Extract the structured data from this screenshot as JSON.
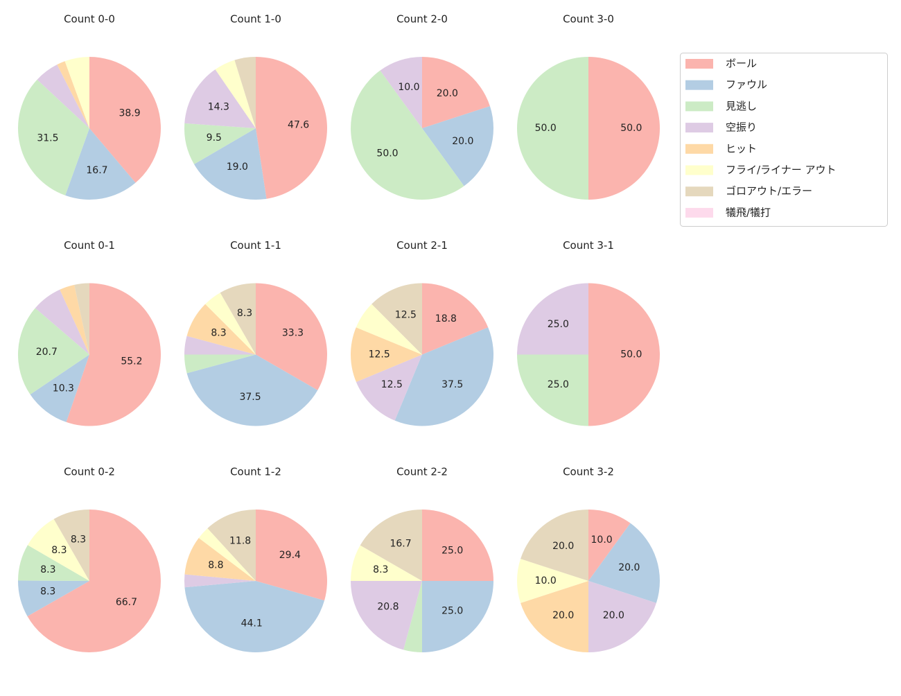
{
  "legend": {
    "labels": [
      "ボール",
      "ファウル",
      "見逃し",
      "空振り",
      "ヒット",
      "フライ/ライナー アウト",
      "ゴロアウト/エラー",
      "犠飛/犠打"
    ],
    "colors": [
      "#fbb4ae",
      "#b3cde3",
      "#ccebc5",
      "#decbe4",
      "#fed9a6",
      "#ffffcc",
      "#e5d8bd",
      "#fddaec"
    ]
  },
  "chart_data": [
    {
      "type": "pie",
      "title": "Count 0-0",
      "values": [
        38.9,
        16.7,
        31.5,
        5.6,
        1.9,
        5.6,
        0,
        0
      ],
      "value_labels": [
        "38.9",
        "16.7",
        "31.5",
        null,
        null,
        null,
        null,
        null
      ]
    },
    {
      "type": "pie",
      "title": "Count 1-0",
      "values": [
        47.6,
        19.0,
        9.5,
        14.3,
        0,
        4.8,
        4.8,
        0
      ],
      "value_labels": [
        "47.6",
        "19.0",
        "9.5",
        "14.3",
        null,
        null,
        null,
        null
      ]
    },
    {
      "type": "pie",
      "title": "Count 2-0",
      "values": [
        20,
        20,
        50,
        10,
        0,
        0,
        0,
        0
      ],
      "value_labels": [
        "20.0",
        "20.0",
        "50.0",
        "10.0",
        null,
        null,
        null,
        null
      ]
    },
    {
      "type": "pie",
      "title": "Count 3-0",
      "values": [
        50,
        0,
        50,
        0,
        0,
        0,
        0,
        0
      ],
      "value_labels": [
        "50.0",
        null,
        "50.0",
        null,
        null,
        null,
        null,
        null
      ]
    },
    {
      "type": "pie",
      "title": "Count 0-1",
      "values": [
        55.2,
        10.3,
        20.7,
        6.9,
        3.4,
        0,
        3.4,
        0
      ],
      "value_labels": [
        "55.2",
        "10.3",
        "20.7",
        null,
        null,
        null,
        null,
        null
      ]
    },
    {
      "type": "pie",
      "title": "Count 1-1",
      "values": [
        33.3,
        37.5,
        4.2,
        4.2,
        8.3,
        4.2,
        8.3,
        0
      ],
      "value_labels": [
        "33.3",
        "37.5",
        null,
        null,
        "8.3",
        null,
        "8.3",
        null
      ]
    },
    {
      "type": "pie",
      "title": "Count 2-1",
      "values": [
        18.8,
        37.5,
        0,
        12.5,
        12.5,
        6.3,
        12.5,
        0
      ],
      "value_labels": [
        "18.8",
        "37.5",
        null,
        "12.5",
        "12.5",
        null,
        "12.5",
        null
      ]
    },
    {
      "type": "pie",
      "title": "Count 3-1",
      "values": [
        50,
        0,
        25,
        25,
        0,
        0,
        0,
        0
      ],
      "value_labels": [
        "50.0",
        null,
        "25.0",
        "25.0",
        null,
        null,
        null,
        null
      ]
    },
    {
      "type": "pie",
      "title": "Count 0-2",
      "values": [
        66.7,
        8.3,
        8.3,
        0,
        0,
        8.3,
        8.3,
        0
      ],
      "value_labels": [
        "66.7",
        "8.3",
        "8.3",
        null,
        null,
        "8.3",
        "8.3",
        null
      ]
    },
    {
      "type": "pie",
      "title": "Count 1-2",
      "values": [
        29.4,
        44.1,
        0,
        2.9,
        8.8,
        2.9,
        11.8,
        0
      ],
      "value_labels": [
        "29.4",
        "44.1",
        null,
        null,
        "8.8",
        null,
        "11.8",
        null
      ]
    },
    {
      "type": "pie",
      "title": "Count 2-2",
      "values": [
        25,
        25,
        4.2,
        20.8,
        0,
        8.3,
        16.7,
        0
      ],
      "value_labels": [
        "25.0",
        "25.0",
        null,
        "20.8",
        null,
        "8.3",
        "16.7",
        null
      ]
    },
    {
      "type": "pie",
      "title": "Count 3-2",
      "values": [
        10,
        20,
        0,
        20,
        20,
        10,
        20,
        0
      ],
      "value_labels": [
        "10.0",
        "20.0",
        null,
        "20.0",
        "20.0",
        "10.0",
        "20.0",
        null
      ]
    }
  ]
}
